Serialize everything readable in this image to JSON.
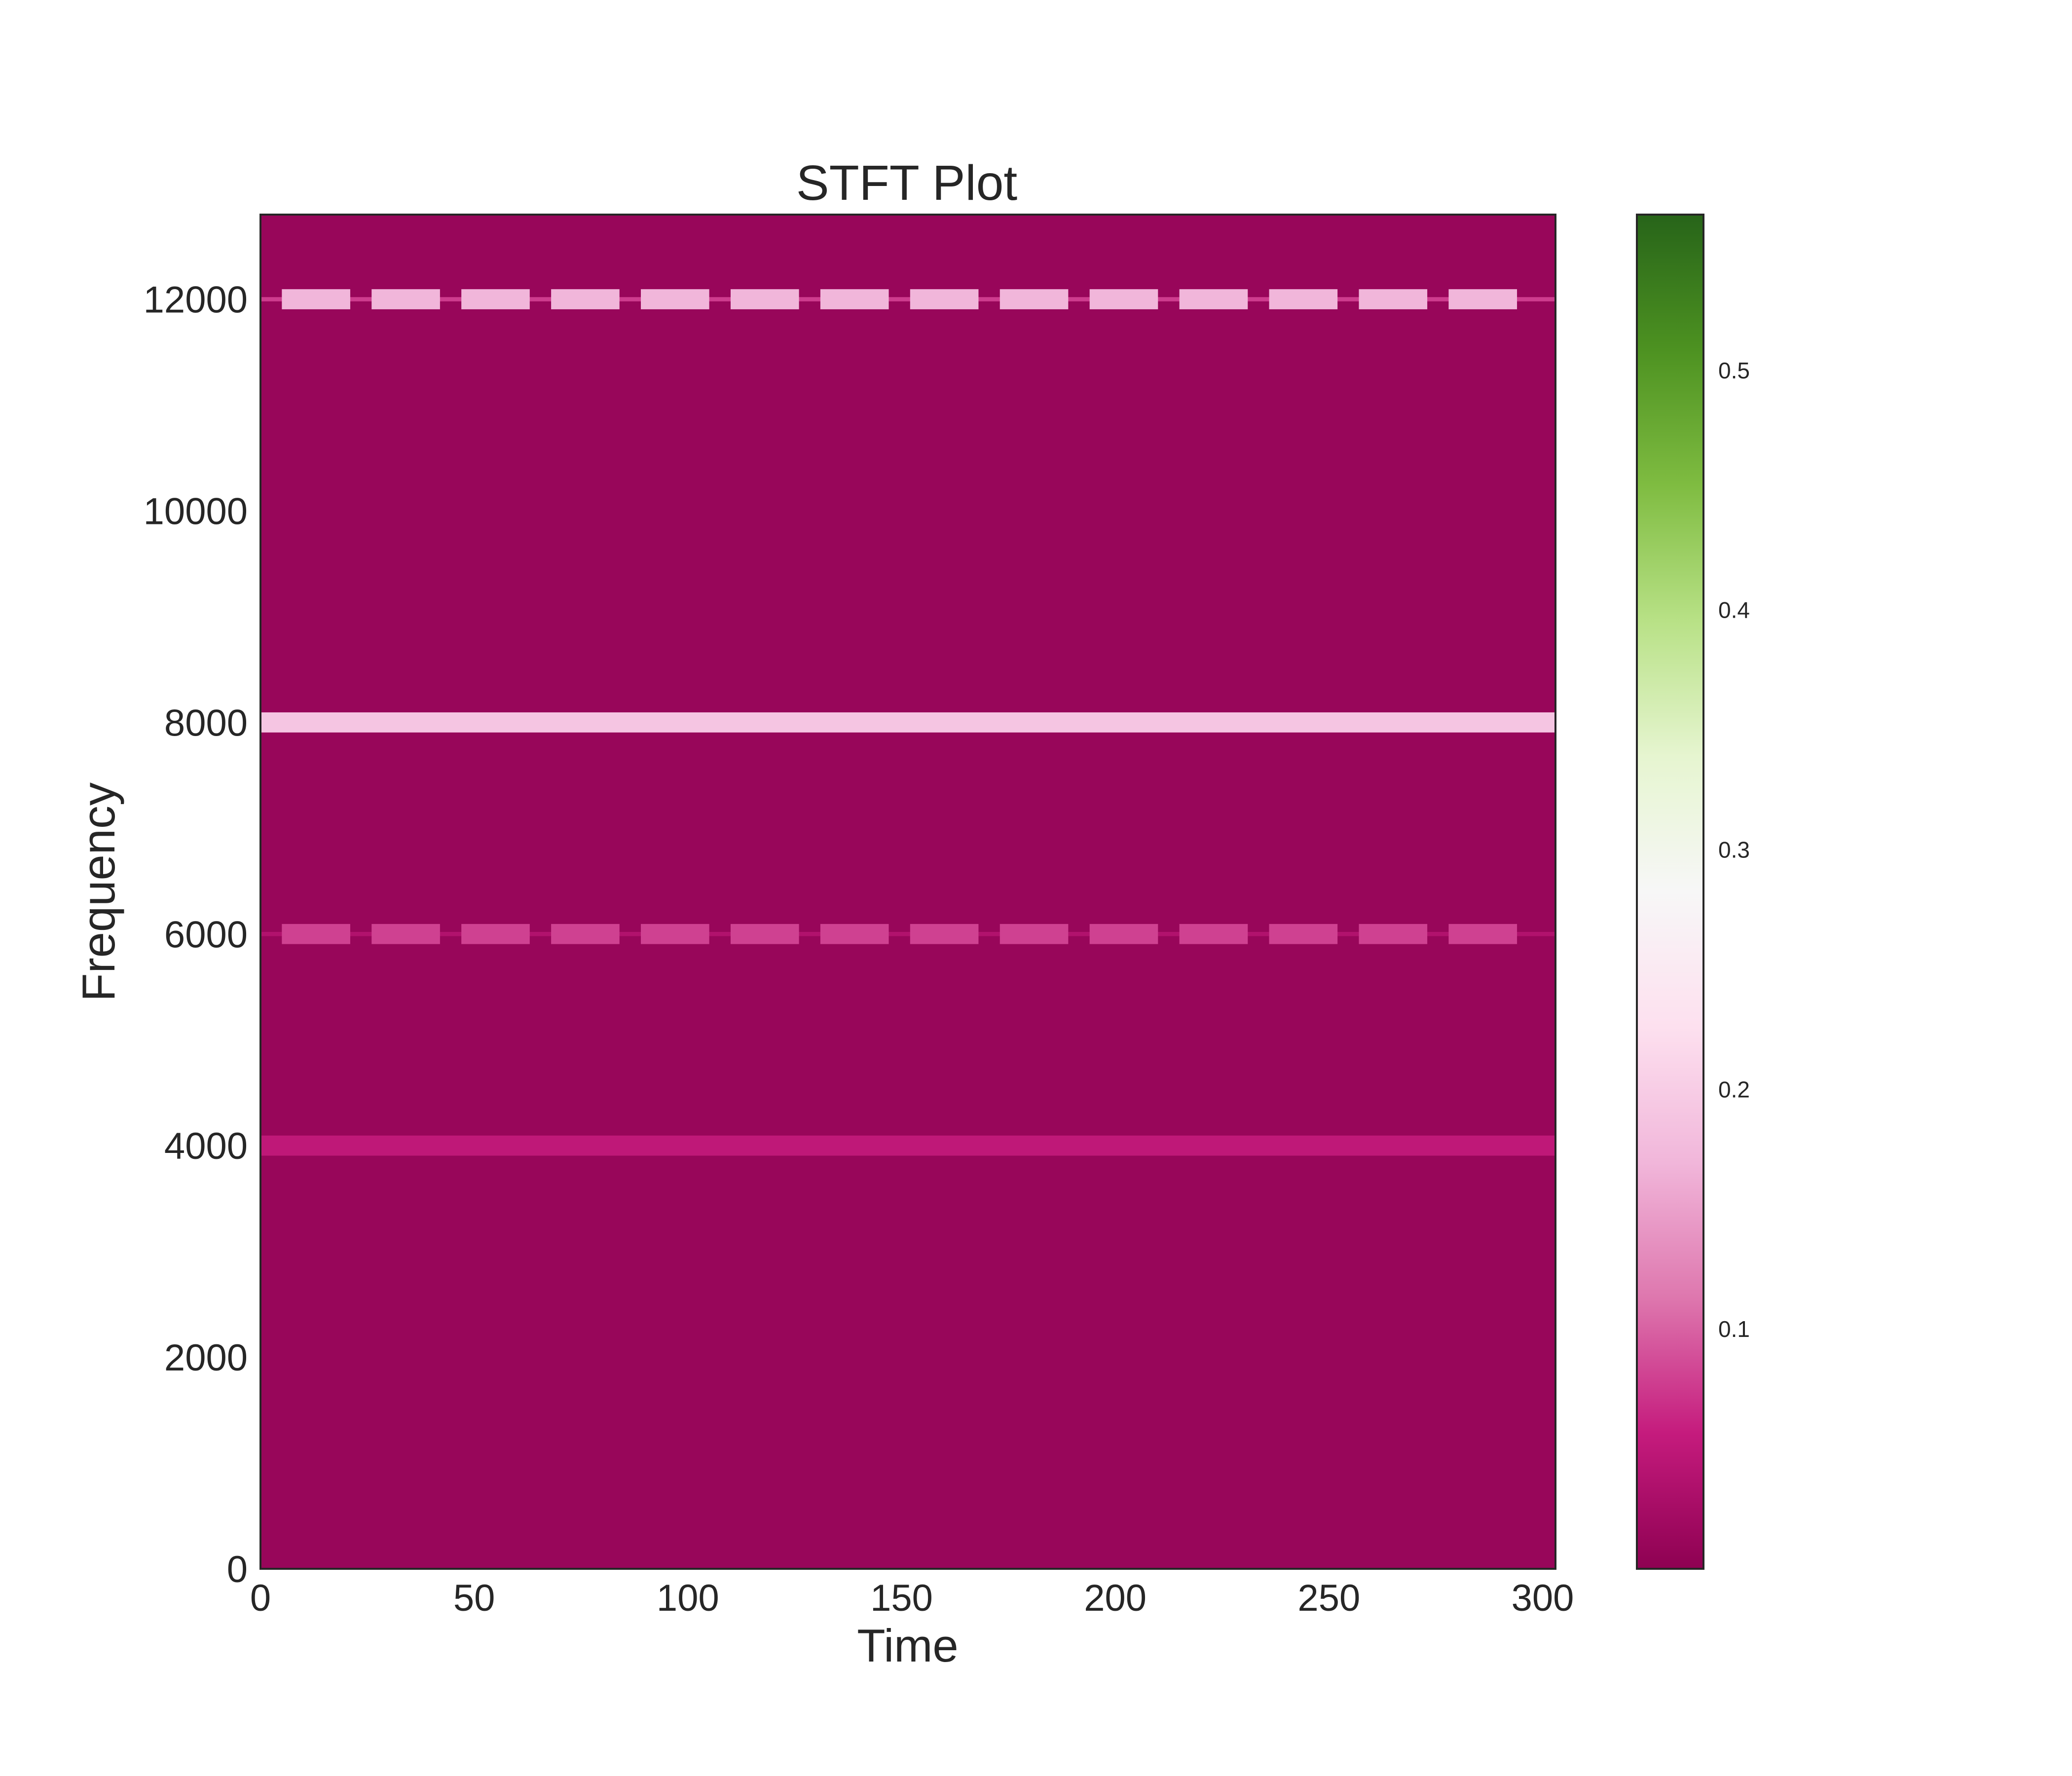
{
  "chart_data": {
    "type": "heatmap",
    "title": "STFT Plot",
    "xlabel": "Time",
    "ylabel": "Frequency",
    "xlim": [
      0,
      303
    ],
    "ylim": [
      0,
      12800
    ],
    "x_ticks": [
      "0",
      "50",
      "100",
      "150",
      "200",
      "250",
      "300"
    ],
    "y_ticks": [
      "0",
      "2000",
      "4000",
      "6000",
      "8000",
      "10000",
      "12000"
    ],
    "colormap": "PiYG",
    "colormap_stops": [
      "#8e0152",
      "#c51b7d",
      "#de77ae",
      "#f1b6da",
      "#fde0ef",
      "#f7f7f7",
      "#e6f5d0",
      "#b8e186",
      "#7fbc41",
      "#4d9221",
      "#276419"
    ],
    "colorbar": {
      "range": [
        0.0,
        0.565
      ],
      "ticks": [
        "0.1",
        "0.2",
        "0.3",
        "0.4",
        "0.5"
      ],
      "tick_values": [
        0.1,
        0.2,
        0.3,
        0.4,
        0.5
      ]
    },
    "background_magnitude": 0.01,
    "bands": [
      {
        "frequency": 8000,
        "magnitude": 0.19,
        "pattern": "continuous"
      },
      {
        "frequency": 4000,
        "magnitude": 0.05,
        "pattern": "continuous"
      },
      {
        "frequency": 12000,
        "magnitude": 0.17,
        "pattern": "pulsed"
      },
      {
        "frequency": 6000,
        "magnitude": 0.08,
        "pattern": "pulsed"
      }
    ],
    "pulse_intervals": [
      [
        5,
        21
      ],
      [
        26,
        42
      ],
      [
        47,
        63
      ],
      [
        68,
        84
      ],
      [
        89,
        105
      ],
      [
        110,
        126
      ],
      [
        131,
        147
      ],
      [
        152,
        168
      ],
      [
        173,
        189
      ],
      [
        194,
        210
      ],
      [
        215,
        231
      ],
      [
        236,
        252
      ],
      [
        257,
        273
      ],
      [
        278,
        294
      ]
    ]
  }
}
